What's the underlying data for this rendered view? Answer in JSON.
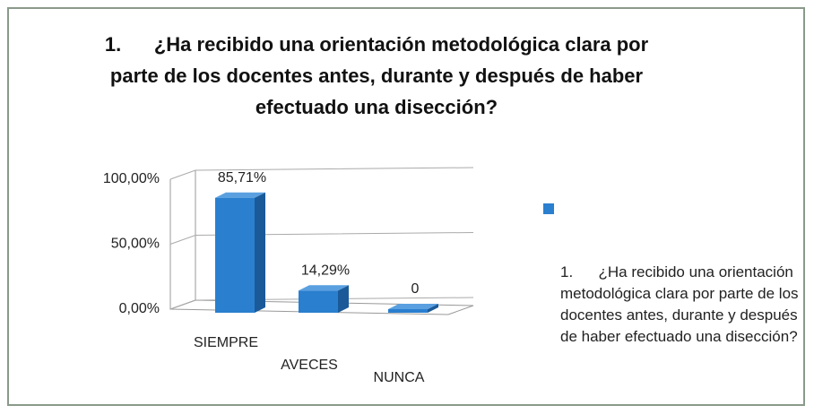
{
  "chart_data": {
    "type": "bar3d",
    "title": "1.      ¿Ha recibido una orientación metodológica clara por parte de los docentes antes, durante y después de haber efectuado una disección?",
    "categories": [
      "SIEMPRE",
      "AVECES",
      "NUNCA"
    ],
    "series": [
      {
        "name": "1.      ¿Ha recibido una orientación metodológica clara por parte de los docentes antes, durante y después de haber efectuado una disección?",
        "color": "#2a7fcf",
        "values": [
          85.71,
          14.29,
          0
        ],
        "value_labels": [
          "85,71%",
          "14,29%",
          "0"
        ]
      }
    ],
    "ylim": [
      0,
      100
    ],
    "yticks": [
      {
        "value": 0,
        "label": "0,00%"
      },
      {
        "value": 50,
        "label": "50,00%"
      },
      {
        "value": 100,
        "label": "100,00%"
      }
    ],
    "grid": true,
    "legend": "right"
  }
}
